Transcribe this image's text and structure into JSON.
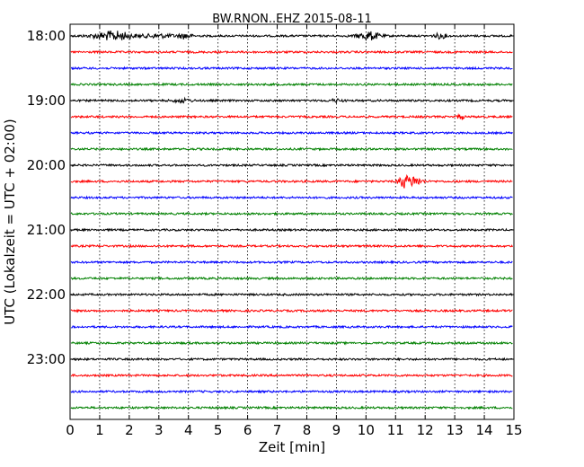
{
  "chart_data": {
    "type": "line",
    "title": "BW.RNON..EHZ 2015-08-11",
    "xlabel": "Zeit  [min]",
    "ylabel": "UTC (Lokalzeit = UTC + 02:00)",
    "xlim": [
      0,
      15
    ],
    "x_ticks": [
      "0",
      "1",
      "2",
      "3",
      "4",
      "5",
      "6",
      "7",
      "8",
      "9",
      "10",
      "11",
      "12",
      "13",
      "14",
      "15"
    ],
    "y_tick_labels": [
      "18:00",
      "19:00",
      "20:00",
      "21:00",
      "22:00",
      "23:00"
    ],
    "grid": "vertical-dotted",
    "trace_colors": [
      "#000000",
      "#ff0000",
      "#0000ff",
      "#008000"
    ],
    "traces": [
      {
        "start": "18:00",
        "color": "#000000",
        "events": [
          [
            1.2,
            0.6,
            2.2
          ],
          [
            1.6,
            0.5,
            3.5
          ],
          [
            3.0,
            0.6,
            1.8
          ],
          [
            3.9,
            0.2,
            3.0
          ],
          [
            10.1,
            0.35,
            4.5
          ],
          [
            12.5,
            0.2,
            2.5
          ]
        ]
      },
      {
        "start": "18:15",
        "color": "#ff0000",
        "events": []
      },
      {
        "start": "18:30",
        "color": "#0000ff",
        "events": []
      },
      {
        "start": "18:45",
        "color": "#008000",
        "events": []
      },
      {
        "start": "19:00",
        "color": "#000000",
        "events": [
          [
            3.8,
            0.3,
            1.8
          ],
          [
            9.0,
            0.2,
            1.5
          ]
        ]
      },
      {
        "start": "19:15",
        "color": "#ff0000",
        "events": [
          [
            13.2,
            0.1,
            3.0
          ]
        ]
      },
      {
        "start": "19:30",
        "color": "#0000ff",
        "events": []
      },
      {
        "start": "19:45",
        "color": "#008000",
        "events": []
      },
      {
        "start": "20:00",
        "color": "#000000",
        "events": []
      },
      {
        "start": "20:15",
        "color": "#ff0000",
        "events": [
          [
            11.25,
            0.15,
            6.5
          ],
          [
            11.6,
            0.25,
            5.5
          ]
        ]
      },
      {
        "start": "20:30",
        "color": "#0000ff",
        "events": []
      },
      {
        "start": "20:45",
        "color": "#008000",
        "events": []
      },
      {
        "start": "21:00",
        "color": "#000000",
        "events": []
      },
      {
        "start": "21:15",
        "color": "#ff0000",
        "events": []
      },
      {
        "start": "21:30",
        "color": "#0000ff",
        "events": []
      },
      {
        "start": "21:45",
        "color": "#008000",
        "events": []
      },
      {
        "start": "22:00",
        "color": "#000000",
        "events": []
      },
      {
        "start": "22:15",
        "color": "#ff0000",
        "events": []
      },
      {
        "start": "22:30",
        "color": "#0000ff",
        "events": []
      },
      {
        "start": "22:45",
        "color": "#008000",
        "events": []
      },
      {
        "start": "23:00",
        "color": "#000000",
        "events": []
      },
      {
        "start": "23:15",
        "color": "#ff0000",
        "events": []
      },
      {
        "start": "23:30",
        "color": "#0000ff",
        "events": []
      },
      {
        "start": "23:45",
        "color": "#008000",
        "events": []
      }
    ]
  }
}
